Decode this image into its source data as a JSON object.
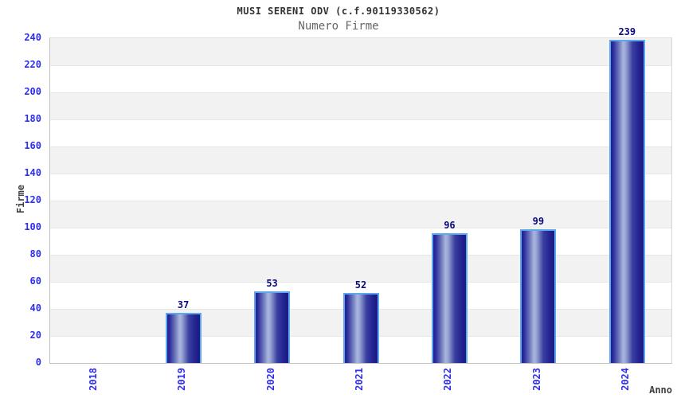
{
  "chart_data": {
    "type": "bar",
    "title": "MUSI SERENI ODV (c.f.90119330562)",
    "subtitle": "Numero Firme",
    "xlabel": "Anno",
    "ylabel": "Firme",
    "categories": [
      "2018",
      "2019",
      "2020",
      "2021",
      "2022",
      "2023",
      "2024"
    ],
    "values": [
      0,
      37,
      53,
      52,
      96,
      99,
      239
    ],
    "ylim": [
      0,
      240
    ],
    "ytick_step": 20,
    "grid": "horizontal-bands-alternating",
    "legend": "none",
    "bar_value_labels": [
      "37",
      "53",
      "52",
      "96",
      "99",
      "239"
    ]
  },
  "colors": {
    "title": "#333333",
    "subtitle": "#666666",
    "axis_title": "#3f3f3f",
    "tick_label": "#2d2df0",
    "value_label": "#0a0a7e",
    "bar_dark": "#20208f",
    "bar_mid": "#3a3fa0",
    "bar_light": "#aab6de",
    "bar_border": "#5fa8ef",
    "band_gray": "#f2f2f2",
    "band_white": "#ffffff",
    "gridline": "#e7e7e7",
    "axis_line": "#c2c2c2"
  }
}
